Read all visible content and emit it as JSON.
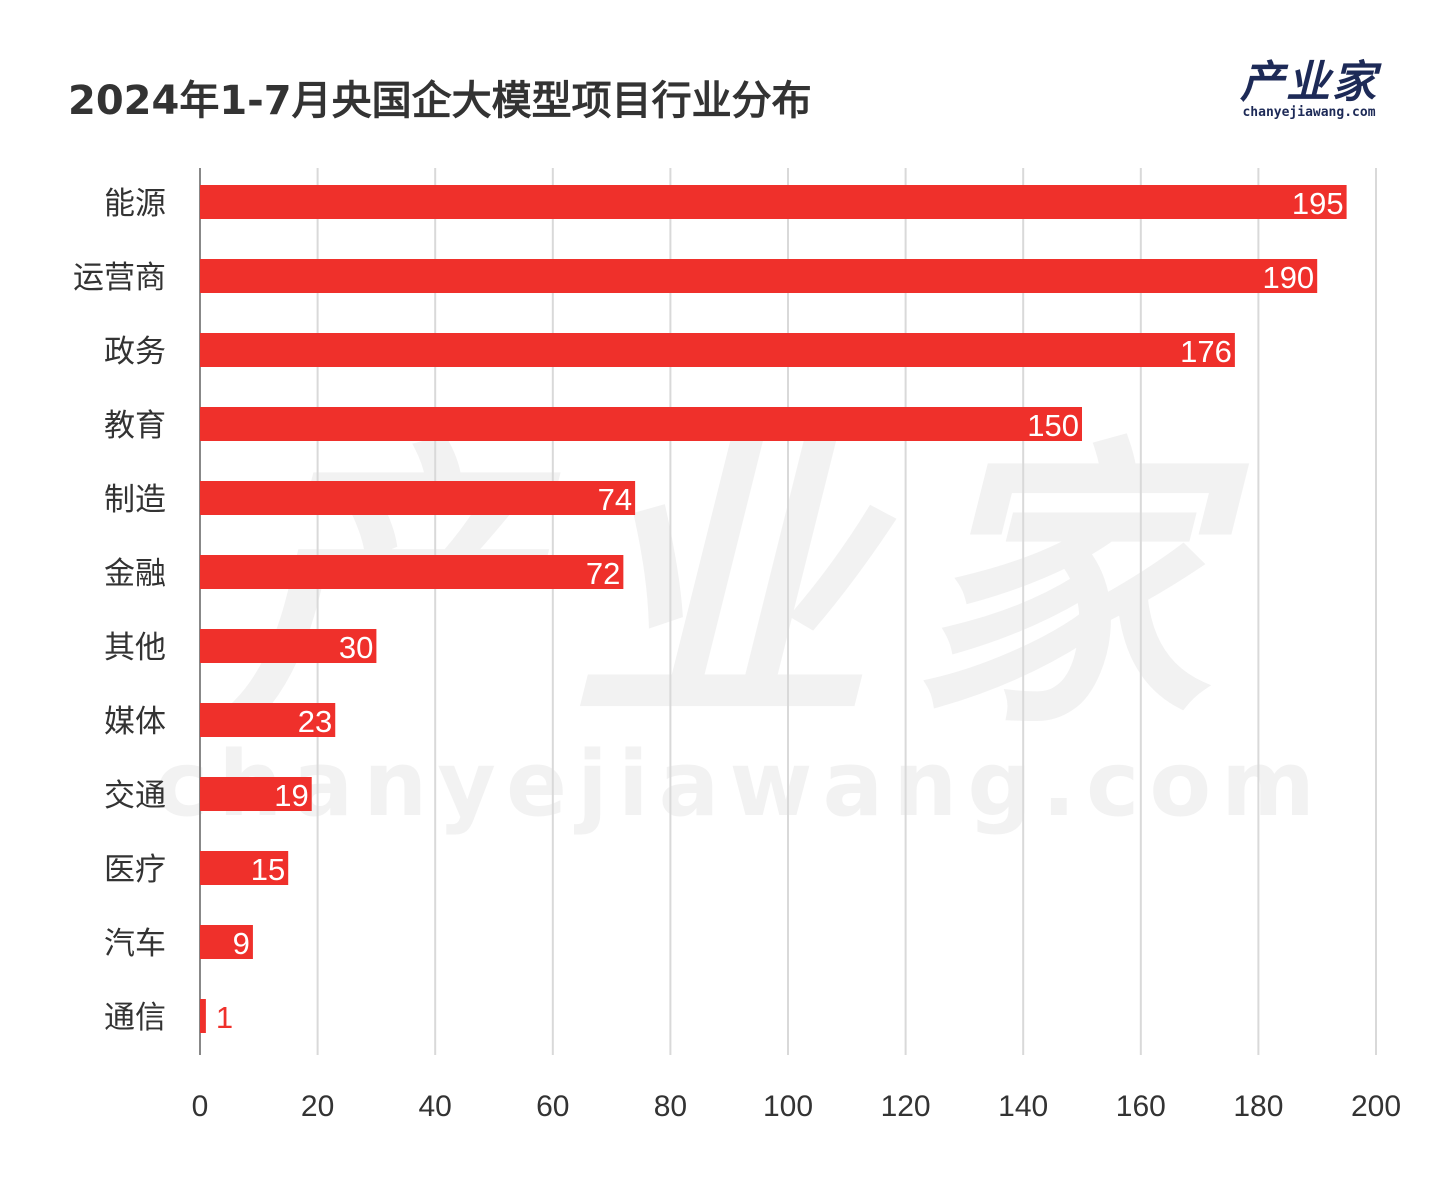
{
  "logo": {
    "cn": "产业家",
    "en": "chanyejiawang.com"
  },
  "chart_data": {
    "type": "bar",
    "orientation": "horizontal",
    "title": "2024年1-7月央国企大模型项目行业分布",
    "categories": [
      "能源",
      "运营商",
      "政务",
      "教育",
      "制造",
      "金融",
      "其他",
      "媒体",
      "交通",
      "医疗",
      "汽车",
      "通信"
    ],
    "values": [
      195,
      190,
      176,
      150,
      74,
      72,
      30,
      23,
      19,
      15,
      9,
      1
    ],
    "xlabel": "",
    "ylabel": "",
    "xlim": [
      0,
      200
    ],
    "xticks": [
      0,
      20,
      40,
      60,
      80,
      100,
      120,
      140,
      160,
      180,
      200
    ],
    "grid": true,
    "legend": "none",
    "bar_color": "#ef302b"
  }
}
